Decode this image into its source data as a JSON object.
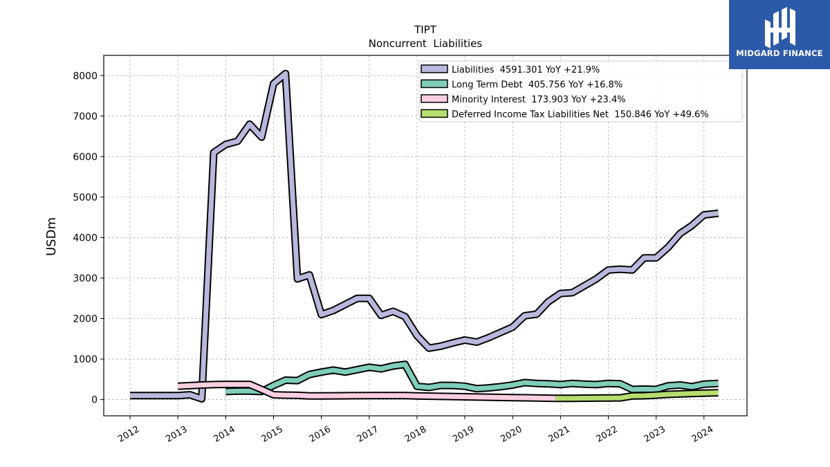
{
  "logo": {
    "text": "MIDGARD FINANCE"
  },
  "chart_data": {
    "type": "line",
    "title": "TIPT",
    "subtitle": "Noncurrent  Liabilities",
    "ylabel": "USDm",
    "xlabel": "",
    "ylim": [
      -400,
      8500
    ],
    "xlim": [
      2011.45,
      2024.9
    ],
    "yticks": [
      0,
      1000,
      2000,
      3000,
      4000,
      5000,
      6000,
      7000,
      8000
    ],
    "xticks": [
      2012,
      2013,
      2014,
      2015,
      2016,
      2017,
      2018,
      2019,
      2020,
      2021,
      2022,
      2023,
      2024
    ],
    "grid": true,
    "legend_position": "top-right",
    "series": [
      {
        "name": "Liabilities  4591.301 YoY +21.9%",
        "color": "#b8b8dc",
        "x": [
          2012.0,
          2012.25,
          2012.5,
          2012.75,
          2013.0,
          2013.25,
          2013.5,
          2013.75,
          2014.0,
          2014.25,
          2014.5,
          2014.75,
          2015.0,
          2015.25,
          2015.5,
          2015.75,
          2016.0,
          2016.25,
          2016.5,
          2016.75,
          2017.0,
          2017.25,
          2017.5,
          2017.75,
          2018.0,
          2018.25,
          2018.5,
          2018.75,
          2019.0,
          2019.25,
          2019.5,
          2019.75,
          2020.0,
          2020.25,
          2020.5,
          2020.75,
          2021.0,
          2021.25,
          2021.5,
          2021.75,
          2022.0,
          2022.25,
          2022.5,
          2022.75,
          2023.0,
          2023.25,
          2023.5,
          2023.75,
          2024.0,
          2024.3
        ],
        "values": [
          100,
          100,
          100,
          100,
          100,
          120,
          20,
          6100,
          6300,
          6380,
          6800,
          6480,
          7800,
          8050,
          2980,
          3080,
          2100,
          2200,
          2350,
          2500,
          2500,
          2080,
          2180,
          2050,
          1580,
          1270,
          1320,
          1400,
          1470,
          1420,
          1530,
          1660,
          1790,
          2070,
          2110,
          2420,
          2620,
          2640,
          2810,
          2980,
          3200,
          3220,
          3200,
          3500,
          3500,
          3760,
          4100,
          4300,
          4560,
          4600
        ]
      },
      {
        "name": "Long Term Debt  405.756 YoY +16.8%",
        "color": "#7fcdbb",
        "x": [
          2014.0,
          2014.25,
          2014.5,
          2014.75,
          2015.0,
          2015.25,
          2015.5,
          2015.75,
          2016.0,
          2016.25,
          2016.5,
          2016.75,
          2017.0,
          2017.25,
          2017.5,
          2017.75,
          2018.0,
          2018.25,
          2018.5,
          2018.75,
          2019.0,
          2019.25,
          2019.5,
          2019.75,
          2020.0,
          2020.25,
          2020.5,
          2020.75,
          2021.0,
          2021.25,
          2021.5,
          2021.75,
          2022.0,
          2022.25,
          2022.5,
          2022.75,
          2023.0,
          2023.25,
          2023.5,
          2023.75,
          2024.0,
          2024.3
        ],
        "values": [
          200,
          210,
          210,
          200,
          350,
          480,
          470,
          620,
          680,
          730,
          680,
          740,
          800,
          760,
          830,
          870,
          330,
          300,
          350,
          350,
          330,
          270,
          290,
          320,
          360,
          420,
          400,
          390,
          370,
          400,
          380,
          370,
          400,
          390,
          250,
          260,
          250,
          340,
          360,
          320,
          380,
          400
        ]
      },
      {
        "name": "Minority Interest  173.903 YoY +23.4%",
        "color": "#fbcfe2",
        "x": [
          2013.0,
          2013.25,
          2013.5,
          2013.75,
          2014.0,
          2014.25,
          2014.5,
          2014.75,
          2015.0,
          2015.25,
          2015.5,
          2015.75,
          2016.0,
          2016.5,
          2017.0,
          2017.5,
          2017.75,
          2018.0,
          2018.5,
          2019.0,
          2019.5,
          2020.0,
          2020.5,
          2020.9
        ],
        "values": [
          330,
          345,
          360,
          370,
          375,
          375,
          375,
          250,
          120,
          110,
          105,
          90,
          90,
          95,
          100,
          100,
          100,
          90,
          80,
          70,
          60,
          50,
          40,
          30
        ]
      },
      {
        "name": "Deferred Income Tax Liabilities Net  150.846 YoY +49.6%",
        "color": "#b5de6e",
        "x": [
          2020.9,
          2021.25,
          2021.5,
          2021.75,
          2022.0,
          2022.25,
          2022.5,
          2022.75,
          2023.0,
          2023.25,
          2023.5,
          2023.75,
          2024.0,
          2024.3
        ],
        "values": [
          30,
          32,
          35,
          38,
          40,
          42,
          90,
          95,
          110,
          130,
          140,
          150,
          160,
          170
        ]
      }
    ]
  }
}
